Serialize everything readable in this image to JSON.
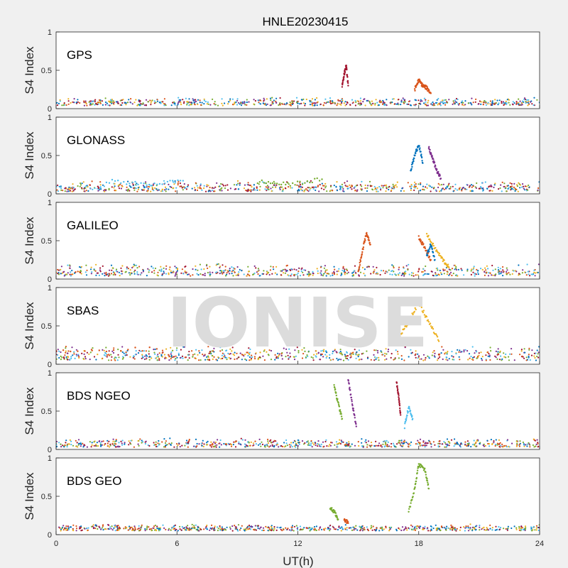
{
  "title": "HNLE20230415",
  "watermark": "IONISE",
  "colors": [
    "#0072BD",
    "#D95319",
    "#EDB120",
    "#7E2F8E",
    "#77AC30",
    "#4DBEEE",
    "#A2142F"
  ],
  "chart_data": [
    {
      "type": "scatter",
      "panel_label": "GPS",
      "ylabel": "S4 Index",
      "xlabel": "",
      "xlim": [
        0,
        24
      ],
      "ylim": [
        0,
        1
      ],
      "xticks": [
        0,
        6,
        12,
        18,
        24
      ],
      "yticks": [
        0,
        0.5,
        1
      ],
      "x_tick_labels_shown": false,
      "baseline_s4": [
        0.04,
        0.15
      ],
      "series": [
        {
          "color": "#0072BD",
          "x": [
            0,
            24
          ],
          "y": [
            0.08,
            0.08
          ]
        },
        {
          "color": "#D95319",
          "x": [
            17.8,
            18.0,
            18.2,
            18.4,
            18.6
          ],
          "y": [
            0.25,
            0.37,
            0.3,
            0.27,
            0.2
          ]
        },
        {
          "color": "#A2142F",
          "x": [
            14.2,
            14.3,
            14.4,
            14.5
          ],
          "y": [
            0.3,
            0.45,
            0.56,
            0.3
          ]
        }
      ]
    },
    {
      "type": "scatter",
      "panel_label": "GLONASS",
      "ylabel": "S4 Index",
      "xlabel": "",
      "xlim": [
        0,
        24
      ],
      "ylim": [
        0,
        1
      ],
      "xticks": [
        0,
        6,
        12,
        18,
        24
      ],
      "yticks": [
        0,
        0.5,
        1
      ],
      "x_tick_labels_shown": false,
      "baseline_s4": [
        0.03,
        0.18
      ],
      "series": [
        {
          "color": "#0072BD",
          "x": [
            17.6,
            17.8,
            18.0,
            18.2
          ],
          "y": [
            0.3,
            0.5,
            0.65,
            0.4
          ]
        },
        {
          "color": "#7E2F8E",
          "x": [
            18.5,
            18.7,
            18.9,
            19.1
          ],
          "y": [
            0.6,
            0.45,
            0.3,
            0.2
          ]
        },
        {
          "color": "#4DBEEE",
          "x": [
            2.5,
            4.5,
            6.3
          ],
          "y": [
            0.17,
            0.12,
            0.17
          ]
        },
        {
          "color": "#77AC30",
          "x": [
            10.0,
            11.5,
            13.2
          ],
          "y": [
            0.16,
            0.12,
            0.19
          ]
        }
      ]
    },
    {
      "type": "scatter",
      "panel_label": "GALILEO",
      "ylabel": "S4 Index",
      "xlabel": "",
      "xlim": [
        0,
        24
      ],
      "ylim": [
        0,
        1
      ],
      "xticks": [
        0,
        6,
        12,
        18,
        24
      ],
      "yticks": [
        0,
        0.5,
        1
      ],
      "x_tick_labels_shown": false,
      "baseline_s4": [
        0.04,
        0.2
      ],
      "series": [
        {
          "color": "#D95319",
          "x": [
            15.0,
            15.2,
            15.4,
            15.6
          ],
          "y": [
            0.1,
            0.35,
            0.6,
            0.45
          ]
        },
        {
          "color": "#D95319",
          "x": [
            18.0,
            18.3,
            18.6
          ],
          "y": [
            0.55,
            0.4,
            0.25
          ]
        },
        {
          "color": "#EDB120",
          "x": [
            18.4,
            18.8,
            19.2,
            19.5
          ],
          "y": [
            0.58,
            0.4,
            0.25,
            0.15
          ]
        },
        {
          "color": "#0072BD",
          "x": [
            18.4,
            18.6,
            18.8
          ],
          "y": [
            0.3,
            0.45,
            0.25
          ]
        }
      ]
    },
    {
      "type": "scatter",
      "panel_label": "SBAS",
      "ylabel": "S4 Index",
      "xlabel": "",
      "xlim": [
        0,
        24
      ],
      "ylim": [
        0,
        1
      ],
      "xticks": [
        0,
        6,
        12,
        18,
        24
      ],
      "yticks": [
        0,
        0.5,
        1
      ],
      "x_tick_labels_shown": false,
      "baseline_s4": [
        0.05,
        0.25
      ],
      "series": [
        {
          "color": "#EDB120",
          "x": [
            17.0,
            17.5,
            18.0,
            18.5,
            19.0
          ],
          "y": [
            0.35,
            0.55,
            0.8,
            0.55,
            0.3
          ]
        },
        {
          "color": "#D95319",
          "x": [
            0,
            5
          ],
          "y": [
            0.18,
            0.2
          ]
        }
      ]
    },
    {
      "type": "scatter",
      "panel_label": "BDS NGEO",
      "ylabel": "S4 Index",
      "xlabel": "",
      "xlim": [
        0,
        24
      ],
      "ylim": [
        0,
        1
      ],
      "xticks": [
        0,
        6,
        12,
        18,
        24
      ],
      "yticks": [
        0,
        0.5,
        1
      ],
      "x_tick_labels_shown": false,
      "baseline_s4": [
        0.03,
        0.15
      ],
      "series": [
        {
          "color": "#77AC30",
          "x": [
            13.8,
            14.0,
            14.2
          ],
          "y": [
            0.85,
            0.6,
            0.4
          ]
        },
        {
          "color": "#7E2F8E",
          "x": [
            14.5,
            14.7,
            14.9
          ],
          "y": [
            0.9,
            0.6,
            0.3
          ]
        },
        {
          "color": "#A2142F",
          "x": [
            16.9,
            17.0,
            17.1
          ],
          "y": [
            0.87,
            0.7,
            0.45
          ]
        },
        {
          "color": "#4DBEEE",
          "x": [
            17.3,
            17.5,
            17.7
          ],
          "y": [
            0.3,
            0.55,
            0.4
          ]
        }
      ]
    },
    {
      "type": "scatter",
      "panel_label": "BDS GEO",
      "ylabel": "S4 Index",
      "xlabel": "UT(h)",
      "xlim": [
        0,
        24
      ],
      "ylim": [
        0,
        1
      ],
      "xticks": [
        0,
        6,
        12,
        18,
        24
      ],
      "yticks": [
        0,
        0.5,
        1
      ],
      "x_tick_labels_shown": true,
      "baseline_s4": [
        0.05,
        0.14
      ],
      "series": [
        {
          "color": "#77AC30",
          "x": [
            17.5,
            17.8,
            18.0,
            18.3,
            18.5
          ],
          "y": [
            0.3,
            0.6,
            0.92,
            0.85,
            0.6
          ]
        },
        {
          "color": "#77AC30",
          "x": [
            13.6,
            13.8,
            14.0
          ],
          "y": [
            0.35,
            0.3,
            0.2
          ]
        },
        {
          "color": "#D95319",
          "x": [
            14.3,
            14.5
          ],
          "y": [
            0.2,
            0.15
          ]
        }
      ]
    }
  ]
}
